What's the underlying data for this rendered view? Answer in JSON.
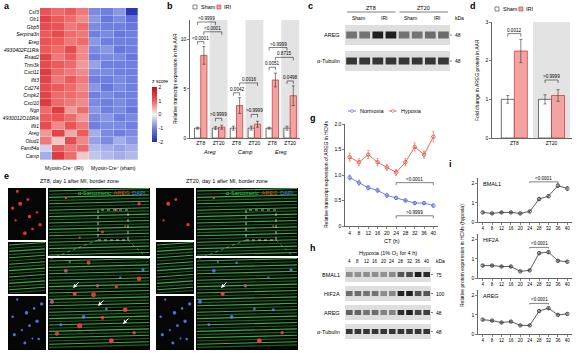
{
  "chart_data": [
    {
      "panel": "a",
      "type": "heatmap",
      "tick_labels": "y",
      "rows": [
        "Csf3",
        "Olr1",
        "Gbp5",
        "Serpina3n",
        "Ereg",
        "4930402F11Rik",
        "Rsad2",
        "Tnni3k",
        "Cxcl11",
        "Ifit3",
        "Cd274",
        "Cmpk2",
        "Cxcl10",
        "Ngp",
        "4930012O16Rik",
        "Ifit1",
        "Areg",
        "Otud1",
        "Fam84a",
        "Camp"
      ],
      "column_groups": [
        "Myosin-Cre⁺ (IRI)",
        "Myosin-Cre⁺ (sham)"
      ],
      "cells": [
        [
          1.1,
          0.9,
          1.0,
          0.8,
          -0.9,
          -1.0,
          -0.8,
          -1.9
        ],
        [
          1.3,
          1.0,
          0.9,
          0.7,
          -0.8,
          -1.1,
          -0.9,
          -1.2
        ],
        [
          1.2,
          1.1,
          0.8,
          0.9,
          -0.9,
          -1.0,
          -1.0,
          -1.1
        ],
        [
          1.0,
          1.2,
          0.9,
          0.8,
          -1.0,
          -0.9,
          -1.1,
          -1.0
        ],
        [
          1.1,
          1.0,
          0.8,
          0.9,
          -0.8,
          -1.0,
          -1.0,
          -1.0
        ],
        [
          1.0,
          0.9,
          1.2,
          0.7,
          -0.9,
          -0.8,
          -1.1,
          -1.0
        ],
        [
          1.3,
          0.8,
          1.0,
          0.7,
          -1.0,
          -0.9,
          -0.9,
          -1.1
        ],
        [
          1.2,
          1.0,
          0.9,
          0.6,
          -0.7,
          -1.0,
          -1.0,
          -1.0
        ],
        [
          1.4,
          0.9,
          0.8,
          0.7,
          -0.9,
          -0.9,
          -1.0,
          -1.0
        ],
        [
          1.3,
          0.8,
          1.0,
          0.8,
          -1.0,
          -1.0,
          -0.9,
          -1.0
        ],
        [
          1.2,
          1.0,
          0.9,
          0.7,
          -0.8,
          -1.1,
          -0.9,
          -1.0
        ],
        [
          1.3,
          0.9,
          0.9,
          0.8,
          -1.0,
          -0.9,
          -1.0,
          -1.0
        ],
        [
          1.4,
          0.9,
          0.8,
          0.7,
          -0.9,
          -1.0,
          -0.9,
          -1.0
        ],
        [
          0.9,
          1.4,
          0.6,
          0.9,
          -0.8,
          -1.0,
          -0.9,
          -1.1
        ],
        [
          1.0,
          1.1,
          0.9,
          0.6,
          -0.9,
          -0.8,
          -1.0,
          -0.9
        ],
        [
          1.2,
          0.7,
          1.1,
          0.8,
          -1.0,
          -0.9,
          -0.9,
          -1.0
        ],
        [
          0.6,
          1.3,
          0.5,
          1.0,
          -0.6,
          -0.9,
          -1.0,
          -0.9
        ],
        [
          0.8,
          0.3,
          1.2,
          0.7,
          -0.7,
          -0.9,
          -0.6,
          -0.8
        ],
        [
          -0.3,
          1.0,
          0.8,
          0.9,
          -0.5,
          -0.6,
          -0.7,
          -0.6
        ],
        [
          -0.6,
          1.4,
          0.9,
          0.3,
          -0.4,
          -0.5,
          -0.6,
          -0.5
        ]
      ],
      "colorbar": {
        "title": "z score",
        "range": [
          -2,
          2
        ],
        "ticks": [
          -2,
          -1,
          0,
          1,
          2
        ]
      }
    },
    {
      "panel": "b",
      "type": "bar",
      "grid": false,
      "legend": "top",
      "categories": [
        "ZT8",
        "ZT20",
        "ZT8",
        "ZT20",
        "ZT8",
        "ZT20"
      ],
      "groups": [
        "Areg",
        "Camp",
        "Ereg"
      ],
      "y_label": "Relative transcript expression in the AAR",
      "ylim": [
        0,
        12
      ],
      "yticks": [
        0,
        5,
        10
      ],
      "series": [
        {
          "name": "Sham",
          "color": "#ffffff",
          "values": [
            1.0,
            1.0,
            1.0,
            1.0,
            1.0,
            1.0
          ],
          "errors": [
            0.1,
            0.15,
            0.2,
            0.2,
            0.1,
            0.2
          ]
        },
        {
          "name": "IRI",
          "color": "#f4a3a3",
          "values": [
            8.4,
            1.1,
            3.3,
            1.4,
            5.9,
            4.3
          ],
          "errors": [
            0.9,
            0.2,
            0.8,
            0.3,
            0.7,
            1.0
          ]
        }
      ],
      "comparisons": [
        {
          "label": "<0.0001",
          "from": [
            0,
            0
          ],
          "to": [
            0,
            1
          ],
          "y": 9.8
        },
        {
          "label": ">0.9999",
          "from": [
            1,
            0
          ],
          "to": [
            1,
            1
          ],
          "y": 2.0
        },
        {
          "label": "<0.0001",
          "from": [
            0,
            1
          ],
          "to": [
            1,
            1
          ],
          "y": 10.8
        },
        {
          "label": ">0.9999",
          "from": [
            0,
            0
          ],
          "to": [
            1,
            0
          ],
          "y": 11.8
        },
        {
          "label": "0.0042",
          "from": [
            2,
            0
          ],
          "to": [
            2,
            1
          ],
          "y": 4.6
        },
        {
          "label": ">0.9999",
          "from": [
            3,
            0
          ],
          "to": [
            3,
            1
          ],
          "y": 2.4
        },
        {
          "label": "0.0016",
          "from": [
            2,
            1
          ],
          "to": [
            3,
            1
          ],
          "y": 5.6
        },
        {
          "label": "0.0051",
          "from": [
            4,
            0
          ],
          "to": [
            4,
            1
          ],
          "y": 7.2
        },
        {
          "label": "0.0498",
          "from": [
            5,
            0
          ],
          "to": [
            5,
            1
          ],
          "y": 5.8
        },
        {
          "label": "0.8715",
          "from": [
            4,
            1
          ],
          "to": [
            5,
            1
          ],
          "y": 8.2
        },
        {
          "label": ">0.9999",
          "from": [
            4,
            0
          ],
          "to": [
            5,
            0
          ],
          "y": 9.2
        }
      ]
    },
    {
      "panel": "d",
      "type": "bar",
      "grid": false,
      "legend": "top",
      "categories": [
        "ZT8",
        "ZT20"
      ],
      "y_label": "Fold change in AREG protein in AAR",
      "ylim": [
        0,
        3
      ],
      "yticks": [
        0,
        1,
        2,
        3
      ],
      "series": [
        {
          "name": "Sham",
          "color": "#ffffff",
          "values": [
            1.0,
            1.0
          ],
          "errors": [
            0.1,
            0.12
          ]
        },
        {
          "name": "IRI",
          "color": "#f4a3a3",
          "values": [
            2.25,
            1.1
          ],
          "errors": [
            0.3,
            0.15
          ]
        }
      ],
      "comparisons": [
        {
          "label": "0.0012",
          "from": [
            0,
            0
          ],
          "to": [
            0,
            1
          ],
          "y": 2.7
        },
        {
          "label": ">0.9999",
          "from": [
            1,
            0
          ],
          "to": [
            1,
            1
          ],
          "y": 1.5
        }
      ]
    },
    {
      "panel": "g",
      "type": "line",
      "grid": false,
      "legend": "top",
      "marker": "circle-open",
      "x": [
        4,
        8,
        12,
        16,
        20,
        24,
        28,
        32,
        36,
        40
      ],
      "xlim": [
        2,
        42
      ],
      "xticks": [
        4,
        8,
        12,
        16,
        20,
        24,
        28,
        32,
        36,
        40
      ],
      "x_label": "CT (h)",
      "y_label": "Relative transcript expression of AREG in HCMs",
      "ylim": [
        0,
        2
      ],
      "yticks": [
        0,
        0.5,
        {
          "value": 1,
          "label": "1.0"
        },
        1.5,
        {
          "value": 2,
          "label": "2.0"
        }
      ],
      "series": [
        {
          "name": "Normoxia",
          "color": "#4a5fd0",
          "values": [
            0.95,
            0.85,
            0.75,
            0.7,
            0.6,
            0.55,
            0.5,
            0.45,
            0.45,
            0.4
          ],
          "errors": [
            0.05,
            0.05,
            0.04,
            0.04,
            0.04,
            0.03,
            0.03,
            0.03,
            0.03,
            0.03
          ]
        },
        {
          "name": "Hypoxia",
          "color": "#e0482f",
          "values": [
            1.35,
            1.25,
            1.4,
            1.25,
            1.15,
            1.05,
            1.25,
            1.55,
            1.4,
            1.75
          ],
          "errors": [
            0.08,
            0.07,
            0.08,
            0.07,
            0.06,
            0.06,
            0.07,
            0.08,
            0.07,
            0.1
          ]
        }
      ],
      "comparisons": [
        {
          "label": "<0.0001",
          "from": 24,
          "to": 40,
          "y": 0.85
        },
        {
          "label": ">0.9999",
          "from": 24,
          "to": 40,
          "y": 0.2
        }
      ]
    },
    {
      "panel": "i",
      "type": "facet",
      "grid": false,
      "marker": "circle-open",
      "y_label": "Relative protein expression in HCMs (hypoxia)",
      "x": [
        4,
        8,
        12,
        16,
        20,
        24,
        28,
        32,
        36,
        40
      ],
      "xlim": [
        2,
        42
      ],
      "xticks": [
        4,
        8,
        12,
        16,
        20,
        24,
        28,
        32,
        36,
        40
      ],
      "ylim": [
        0,
        2.3
      ],
      "yticks": [
        0,
        1,
        2
      ],
      "series": [
        {
          "name": "BMAL1",
          "color": "#333333",
          "values": [
            0.5,
            0.45,
            0.5,
            0.5,
            0.45,
            0.55,
            1.2,
            1.35,
            1.9,
            1.75
          ],
          "errors": [
            0.05,
            0.05,
            0.05,
            0.05,
            0.05,
            0.05,
            0.08,
            0.08,
            0.1,
            0.1
          ],
          "comparisons": [
            {
              "label": "<0.0001",
              "from": 24,
              "to": 36,
              "y": 2.1
            }
          ]
        },
        {
          "name": "HIF2A",
          "color": "#333333",
          "values": [
            0.65,
            0.65,
            0.6,
            0.6,
            0.35,
            0.4,
            1.3,
            1.35,
            0.9,
            0.85
          ],
          "errors": [
            0.05,
            0.05,
            0.05,
            0.05,
            0.04,
            0.04,
            0.08,
            0.08,
            0.06,
            0.06
          ],
          "comparisons": [
            {
              "label": "<0.0001",
              "from": 24,
              "to": 32,
              "y": 1.6
            }
          ]
        },
        {
          "name": "AREG",
          "color": "#333333",
          "values": [
            0.75,
            0.7,
            0.6,
            0.65,
            0.45,
            0.45,
            1.2,
            1.35,
            1.0,
            1.05
          ],
          "errors": [
            0.05,
            0.05,
            0.05,
            0.05,
            0.04,
            0.04,
            0.08,
            0.08,
            0.06,
            0.06
          ],
          "comparisons": [
            {
              "label": "<0.0001",
              "from": 24,
              "to": 32,
              "y": 1.6
            }
          ]
        }
      ]
    }
  ],
  "blots": [
    {
      "panel": "c",
      "column_groups": [
        "ZT8",
        "ZT20"
      ],
      "conditions": [
        "Sham",
        "IRI"
      ],
      "lanes_per_condition": 2,
      "kda_title": "kDa",
      "rows": [
        {
          "label": "AREG",
          "kda": 48
        },
        {
          "label": "α-Tubulin",
          "kda": 48
        }
      ]
    },
    {
      "panel": "h",
      "title": "Hypoxia (1% O₂ for 4 h)",
      "lanes": [
        4,
        8,
        12,
        16,
        20,
        24,
        28,
        32,
        36,
        40
      ],
      "kda_title": "kDa",
      "rows": [
        {
          "label": "BMAL1",
          "kda": 75
        },
        {
          "label": "HIF2A",
          "kda": 100
        },
        {
          "label": "AREG",
          "kda": 48
        },
        {
          "label": "α-Tubulin",
          "kda": 48
        }
      ]
    }
  ],
  "micrographs": [
    {
      "panel": "e",
      "title": "ZT8, day 1 after MI, border zone",
      "channels": [
        {
          "label": "α-Sarcomeric",
          "color": "#3ad24a"
        },
        {
          "label": "AREG",
          "color": "#ff3b30"
        },
        {
          "label": "DAPI",
          "color": "#5a78ff"
        }
      ]
    },
    {
      "title": "ZT20, day 1 after MI, border zone",
      "channels": [
        {
          "label": "α-Sarcomeric",
          "color": "#3ad24a"
        },
        {
          "label": "AREG",
          "color": "#ff3b30"
        },
        {
          "label": "DAPI",
          "color": "#5a78ff"
        }
      ]
    }
  ]
}
